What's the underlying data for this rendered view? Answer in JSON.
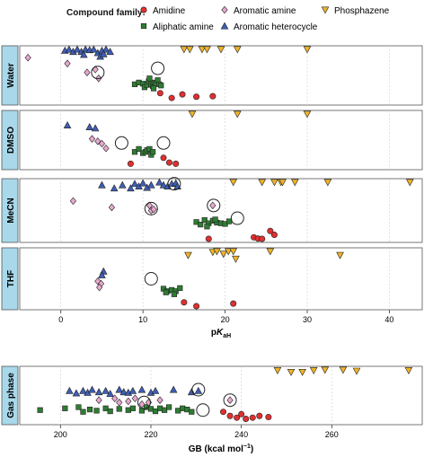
{
  "legend": {
    "title": "Compound family:",
    "items": [
      {
        "key": "amidine",
        "label": "Amidine"
      },
      {
        "key": "aromatic_amine",
        "label": "Aromatic amine"
      },
      {
        "key": "phosphazene",
        "label": "Phosphazene"
      },
      {
        "key": "aliphatic_amine",
        "label": "Aliphatic amine"
      },
      {
        "key": "aromatic_heterocycle",
        "label": "Aromatic heterocycle"
      }
    ]
  },
  "styles": {
    "amidine": {
      "shape": "circle",
      "color": "#e03030"
    },
    "aromatic_amine": {
      "shape": "diamond",
      "color": "#e8a8d0"
    },
    "phosphazene": {
      "shape": "triangle-down",
      "color": "#f0b429"
    },
    "aliphatic_amine": {
      "shape": "square",
      "color": "#2e7d32"
    },
    "aromatic_heterocycle": {
      "shape": "triangle-up",
      "color": "#3f5fb5"
    },
    "panel_label_bg": "#a8d8ea"
  },
  "chart_data": [
    {
      "type": "scatter",
      "x_axis_label": "pK",
      "x_axis_sub": "aH",
      "xlim": [
        -5,
        44
      ],
      "x_ticks": [
        "0",
        "10",
        "20",
        "30",
        "40"
      ],
      "x_tick_values": [
        0,
        10,
        20,
        30,
        40
      ],
      "panels": [
        {
          "name": "Water",
          "series": {
            "aromatic_amine": [
              [
                -4,
                0.8
              ],
              [
                0.8,
                0.7
              ],
              [
                3.2,
                0.55
              ],
              [
                4.2,
                0.6
              ],
              [
                4.6,
                0.45
              ]
            ],
            "aromatic_heterocycle": [
              [
                0.5,
                0.92
              ],
              [
                1.0,
                0.95
              ],
              [
                1.5,
                0.9
              ],
              [
                2.0,
                0.95
              ],
              [
                2.5,
                0.9
              ],
              [
                3.0,
                0.97
              ],
              [
                3.5,
                0.93
              ],
              [
                4.0,
                0.95
              ],
              [
                4.5,
                0.88
              ],
              [
                5.0,
                0.92
              ],
              [
                5.5,
                0.97
              ],
              [
                6.0,
                0.9
              ],
              [
                2.8,
                0.85
              ],
              [
                4.8,
                0.82
              ],
              [
                5.2,
                0.86
              ]
            ],
            "aliphatic_amine": [
              [
                9.0,
                0.35
              ],
              [
                9.5,
                0.38
              ],
              [
                10.0,
                0.36
              ],
              [
                10.2,
                0.3
              ],
              [
                10.5,
                0.34
              ],
              [
                10.7,
                0.4
              ],
              [
                11.0,
                0.35
              ],
              [
                11.2,
                0.32
              ],
              [
                11.4,
                0.38
              ],
              [
                11.6,
                0.36
              ],
              [
                11.8,
                0.42
              ],
              [
                12.0,
                0.35
              ],
              [
                12.2,
                0.33
              ],
              [
                11.3,
                0.28
              ],
              [
                10.8,
                0.45
              ]
            ],
            "amidine": [
              [
                12.1,
                0.2
              ],
              [
                13.5,
                0.12
              ],
              [
                14.8,
                0.18
              ],
              [
                16.5,
                0.14
              ],
              [
                18.5,
                0.15
              ]
            ],
            "phosphazene": [
              [
                15.0,
                1.3
              ],
              [
                15.7,
                1.25
              ],
              [
                17.2,
                1.2
              ],
              [
                17.8,
                1.18
              ],
              [
                19.5,
                1.3
              ],
              [
                21.5,
                1.34
              ],
              [
                30.0,
                1.32
              ]
            ]
          },
          "circled": [
            [
              4.5,
              0.55
            ],
            [
              11.8,
              0.62
            ]
          ]
        },
        {
          "name": "DMSO",
          "series": {
            "aromatic_heterocycle": [
              [
                0.8,
                0.75
              ],
              [
                3.5,
                0.72
              ],
              [
                4.2,
                0.7
              ]
            ],
            "aromatic_amine": [
              [
                3.8,
                0.52
              ],
              [
                4.5,
                0.48
              ],
              [
                5.0,
                0.44
              ],
              [
                5.5,
                0.36
              ]
            ],
            "aliphatic_amine": [
              [
                9.0,
                0.3
              ],
              [
                9.5,
                0.35
              ],
              [
                10.0,
                0.28
              ],
              [
                10.3,
                0.3
              ],
              [
                10.5,
                0.33
              ],
              [
                11.0,
                0.25
              ],
              [
                10.8,
                0.35
              ],
              [
                11.2,
                0.3
              ]
            ],
            "amidine": [
              [
                8.5,
                0.1
              ],
              [
                12.5,
                0.2
              ],
              [
                13.2,
                0.12
              ],
              [
                14.0,
                0.1
              ]
            ],
            "phosphazene": [
              [
                16.0,
                1.1
              ],
              [
                21.5,
                1.05
              ],
              [
                30.0,
                0.95
              ]
            ]
          },
          "circled": [
            [
              7.4,
              0.45
            ],
            [
              12.5,
              0.45
            ]
          ]
        },
        {
          "name": "MeCN",
          "series": {
            "aromatic_heterocycle": [
              [
                5.0,
                0.9
              ],
              [
                6.5,
                0.85
              ],
              [
                7.5,
                0.9
              ],
              [
                8.5,
                0.85
              ],
              [
                9.0,
                0.92
              ],
              [
                9.5,
                0.88
              ],
              [
                10.0,
                0.93
              ],
              [
                10.5,
                0.86
              ],
              [
                11.0,
                0.9
              ],
              [
                12.0,
                0.95
              ],
              [
                12.5,
                0.9
              ],
              [
                13.0,
                0.88
              ],
              [
                13.5,
                0.92
              ],
              [
                14.0,
                0.93
              ],
              [
                14.2,
                0.88
              ]
            ],
            "aromatic_amine": [
              [
                1.5,
                0.65
              ],
              [
                6.2,
                0.55
              ],
              [
                10.8,
                0.58
              ],
              [
                11.0,
                0.5
              ],
              [
                11.3,
                0.52
              ],
              [
                18.5,
                0.58
              ]
            ],
            "aliphatic_amine": [
              [
                16.5,
                0.32
              ],
              [
                17.0,
                0.28
              ],
              [
                17.5,
                0.35
              ],
              [
                18.0,
                0.3
              ],
              [
                18.5,
                0.34
              ],
              [
                19.0,
                0.31
              ],
              [
                19.5,
                0.3
              ],
              [
                20.0,
                0.29
              ],
              [
                20.5,
                0.33
              ],
              [
                17.8,
                0.25
              ],
              [
                18.8,
                0.36
              ]
            ],
            "amidine": [
              [
                18.0,
                0.05
              ],
              [
                23.5,
                0.08
              ],
              [
                24.0,
                0.06
              ],
              [
                24.5,
                0.05
              ],
              [
                25.5,
                0.18
              ],
              [
                26.0,
                0.12
              ]
            ],
            "phosphazene": [
              [
                21.0,
                1.3
              ],
              [
                24.5,
                1.3
              ],
              [
                26.0,
                1.45
              ],
              [
                26.8,
                1.3
              ],
              [
                27.0,
                1.55
              ],
              [
                28.5,
                1.5
              ],
              [
                32.5,
                1.4
              ],
              [
                42.5,
                1.3
              ]
            ]
          },
          "circled": [
            [
              13.8,
              0.92
            ],
            [
              11.0,
              0.53
            ],
            [
              18.6,
              0.58
            ],
            [
              21.5,
              0.38
            ]
          ]
        },
        {
          "name": "THF",
          "series": {
            "aromatic_heterocycle": [
              [
                5.2,
                0.62
              ],
              [
                5.0,
                0.56
              ]
            ],
            "aromatic_amine": [
              [
                4.5,
                0.46
              ],
              [
                4.9,
                0.42
              ],
              [
                4.7,
                0.36
              ]
            ],
            "aliphatic_amine": [
              [
                12.5,
                0.34
              ],
              [
                13.0,
                0.3
              ],
              [
                13.5,
                0.32
              ],
              [
                14.0,
                0.3
              ],
              [
                14.5,
                0.35
              ],
              [
                12.8,
                0.28
              ],
              [
                13.8,
                0.25
              ]
            ],
            "amidine": [
              [
                15.0,
                0.12
              ],
              [
                16.5,
                0.05
              ],
              [
                21.0,
                0.1
              ]
            ],
            "phosphazene": [
              [
                15.5,
                0.88
              ],
              [
                18.5,
                0.93
              ],
              [
                19.0,
                1.0
              ],
              [
                19.8,
                0.9
              ],
              [
                20.4,
                0.95
              ],
              [
                21.0,
                1.0
              ],
              [
                21.3,
                0.82
              ],
              [
                25.5,
                0.95
              ],
              [
                34.0,
                0.88
              ]
            ]
          },
          "circled": [
            [
              11.0,
              0.5
            ]
          ]
        }
      ]
    },
    {
      "type": "scatter",
      "x_axis_label": "GB (kcal mol",
      "x_axis_sup": "−1",
      "x_axis_close": ")",
      "xlim": [
        191,
        280
      ],
      "x_ticks": [
        "200",
        "220",
        "240",
        "260"
      ],
      "x_tick_values": [
        200,
        220,
        240,
        260
      ],
      "panels": [
        {
          "name": "Gas phase",
          "series": {
            "aromatic_heterocycle": [
              [
                202,
                0.58
              ],
              [
                203.5,
                0.54
              ],
              [
                205,
                0.58
              ],
              [
                206,
                0.55
              ],
              [
                207,
                0.6
              ],
              [
                208.5,
                0.56
              ],
              [
                210,
                0.58
              ],
              [
                211,
                0.53
              ],
              [
                213,
                0.6
              ],
              [
                214,
                0.56
              ],
              [
                215,
                0.55
              ],
              [
                216,
                0.58
              ],
              [
                218,
                0.6
              ],
              [
                220,
                0.55
              ],
              [
                221,
                0.58
              ],
              [
                225,
                0.6
              ],
              [
                229,
                0.56
              ],
              [
                230.5,
                0.58
              ]
            ],
            "aromatic_amine": [
              [
                208.5,
                0.42
              ],
              [
                212,
                0.45
              ],
              [
                213,
                0.38
              ],
              [
                215,
                0.4
              ],
              [
                216.5,
                0.45
              ],
              [
                218,
                0.35
              ],
              [
                219.5,
                0.38
              ],
              [
                222,
                0.42
              ],
              [
                237.5,
                0.42
              ]
            ],
            "aliphatic_amine": [
              [
                195.5,
                0.25
              ],
              [
                201,
                0.28
              ],
              [
                204,
                0.3
              ],
              [
                205,
                0.22
              ],
              [
                206.5,
                0.26
              ],
              [
                208,
                0.24
              ],
              [
                210,
                0.28
              ],
              [
                211,
                0.23
              ],
              [
                213,
                0.27
              ],
              [
                215,
                0.25
              ],
              [
                216,
                0.28
              ],
              [
                218,
                0.24
              ],
              [
                219,
                0.3
              ],
              [
                220,
                0.27
              ],
              [
                221,
                0.23
              ],
              [
                222,
                0.28
              ],
              [
                223,
                0.25
              ],
              [
                224,
                0.3
              ],
              [
                226,
                0.24
              ],
              [
                227,
                0.28
              ],
              [
                228,
                0.26
              ],
              [
                229,
                0.22
              ]
            ],
            "amidine": [
              [
                236,
                0.22
              ],
              [
                237.5,
                0.15
              ],
              [
                239,
                0.12
              ],
              [
                240,
                0.18
              ],
              [
                241,
                0.1
              ],
              [
                242.5,
                0.12
              ],
              [
                244,
                0.15
              ],
              [
                246,
                0.13
              ]
            ],
            "phosphazene": [
              [
                248,
                0.93
              ],
              [
                251,
                0.9
              ],
              [
                253.5,
                0.9
              ],
              [
                256,
                0.93
              ],
              [
                258.5,
                0.98
              ],
              [
                262.5,
                0.95
              ],
              [
                265.5,
                0.92
              ],
              [
                277,
                0.93
              ]
            ]
          },
          "circled": [
            [
              218.5,
              0.38
            ],
            [
              230.5,
              0.6
            ],
            [
              237.5,
              0.42
            ],
            [
              231.5,
              0.25
            ]
          ]
        }
      ]
    }
  ]
}
